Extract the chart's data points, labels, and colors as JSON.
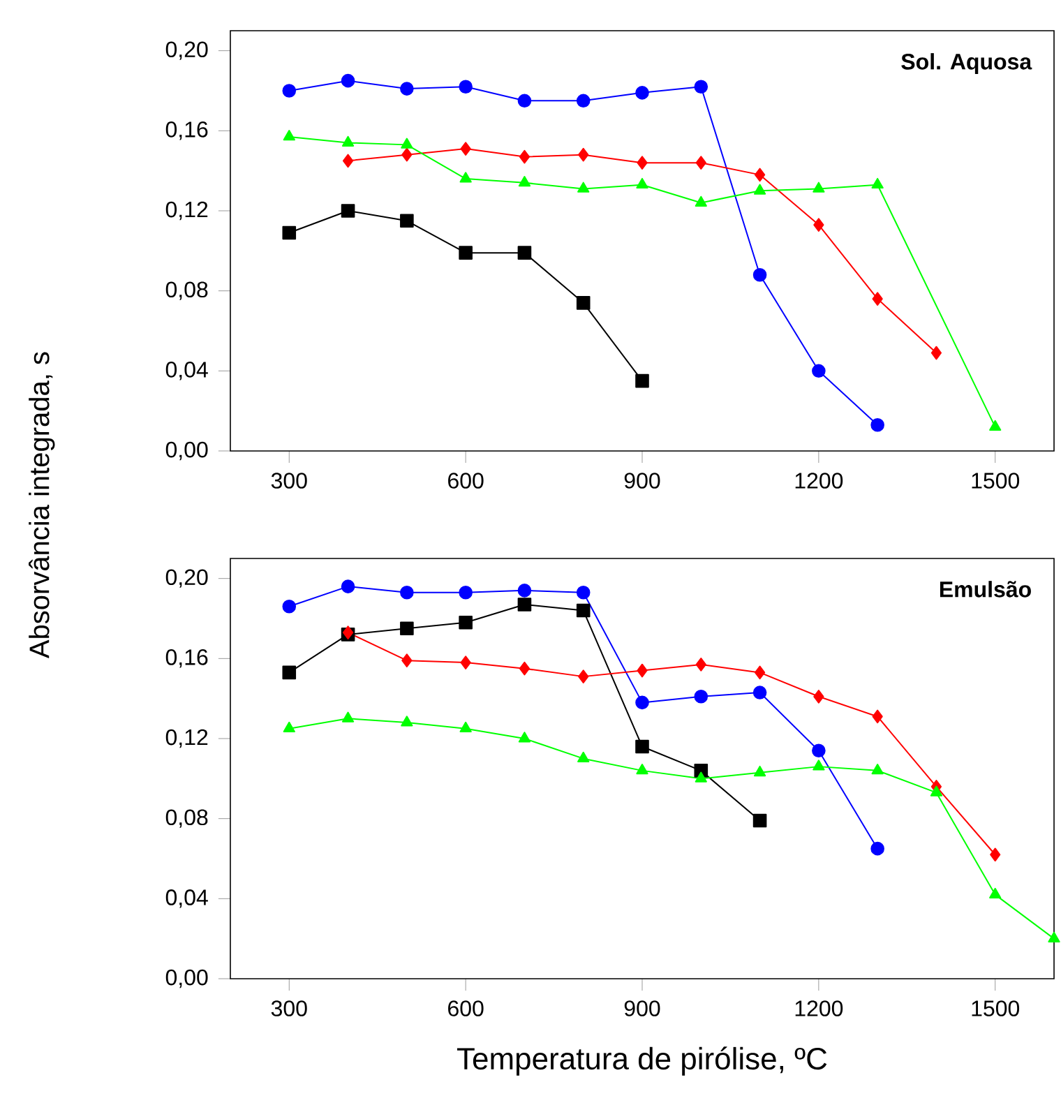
{
  "chart_data": [
    {
      "type": "line",
      "ylabel": "Absorvância integrada, s",
      "annotations": [
        "Sol. Aquosa"
      ],
      "xlim": [
        200,
        1600
      ],
      "ylim": [
        0,
        0.21
      ],
      "xticks": [
        300,
        600,
        900,
        1200,
        1500
      ],
      "yticks": [
        {
          "value": 0,
          "label": "0,00"
        },
        {
          "value": 0.04,
          "label": "0,04"
        },
        {
          "value": 0.08,
          "label": "0,08"
        },
        {
          "value": 0.12,
          "label": "0,12"
        },
        {
          "value": 0.16,
          "label": "0,16"
        },
        {
          "value": 0.2,
          "label": "0,20"
        }
      ],
      "grid": false,
      "legend": false,
      "line_style": "solid",
      "series": [
        {
          "color": "#000000",
          "marker": "square",
          "x": [
            300,
            400,
            500,
            600,
            700,
            800,
            900
          ],
          "values": [
            0.109,
            0.12,
            0.115,
            0.099,
            0.099,
            0.074,
            0.035
          ]
        },
        {
          "color": "#0000ff",
          "marker": "circle",
          "x": [
            300,
            400,
            500,
            600,
            700,
            800,
            900,
            1000,
            1100,
            1200,
            1300
          ],
          "values": [
            0.18,
            0.185,
            0.181,
            0.182,
            0.175,
            0.175,
            0.179,
            0.182,
            0.088,
            0.04,
            0.013
          ]
        },
        {
          "color": "#ff0000",
          "marker": "diamond",
          "x": [
            400,
            500,
            600,
            700,
            800,
            900,
            1000,
            1100,
            1200,
            1300,
            1400
          ],
          "values": [
            0.145,
            0.148,
            0.151,
            0.147,
            0.148,
            0.144,
            0.144,
            0.138,
            0.113,
            0.076,
            0.049
          ]
        },
        {
          "color": "#00ff00",
          "marker": "triangle",
          "x": [
            300,
            400,
            500,
            600,
            700,
            800,
            900,
            1000,
            1100,
            1200,
            1300,
            1500
          ],
          "values": [
            0.157,
            0.154,
            0.153,
            0.136,
            0.134,
            0.131,
            0.133,
            0.124,
            0.13,
            0.131,
            0.133,
            0.012
          ]
        }
      ]
    },
    {
      "type": "line",
      "xlabel": "Temperatura de pirólise, ºC",
      "annotations": [
        "Emulsão"
      ],
      "xlim": [
        200,
        1600
      ],
      "ylim": [
        0,
        0.21
      ],
      "xticks": [
        300,
        600,
        900,
        1200,
        1500
      ],
      "yticks": [
        {
          "value": 0,
          "label": "0,00"
        },
        {
          "value": 0.04,
          "label": "0,04"
        },
        {
          "value": 0.08,
          "label": "0,08"
        },
        {
          "value": 0.12,
          "label": "0,12"
        },
        {
          "value": 0.16,
          "label": "0,16"
        },
        {
          "value": 0.2,
          "label": "0,20"
        }
      ],
      "grid": false,
      "legend": false,
      "line_style": "solid",
      "series": [
        {
          "color": "#000000",
          "marker": "square",
          "x": [
            300,
            400,
            500,
            600,
            700,
            800,
            900,
            1000,
            1100
          ],
          "values": [
            0.153,
            0.172,
            0.175,
            0.178,
            0.187,
            0.184,
            0.116,
            0.104,
            0.079
          ]
        },
        {
          "color": "#0000ff",
          "marker": "circle",
          "x": [
            300,
            400,
            500,
            600,
            700,
            800,
            900,
            1000,
            1100,
            1200,
            1300
          ],
          "values": [
            0.186,
            0.196,
            0.193,
            0.193,
            0.194,
            0.193,
            0.138,
            0.141,
            0.143,
            0.114,
            0.065
          ]
        },
        {
          "color": "#ff0000",
          "marker": "diamond",
          "x": [
            400,
            500,
            600,
            700,
            800,
            900,
            1000,
            1100,
            1200,
            1300,
            1400,
            1500
          ],
          "values": [
            0.173,
            0.159,
            0.158,
            0.155,
            0.151,
            0.154,
            0.157,
            0.153,
            0.141,
            0.131,
            0.096,
            0.062
          ]
        },
        {
          "color": "#00ff00",
          "marker": "triangle",
          "x": [
            300,
            400,
            500,
            600,
            700,
            800,
            900,
            1000,
            1100,
            1200,
            1300,
            1400,
            1500,
            1600
          ],
          "values": [
            0.125,
            0.13,
            0.128,
            0.125,
            0.12,
            0.11,
            0.104,
            0.1,
            0.103,
            0.106,
            0.104,
            0.093,
            0.042,
            0.02
          ]
        }
      ]
    }
  ]
}
